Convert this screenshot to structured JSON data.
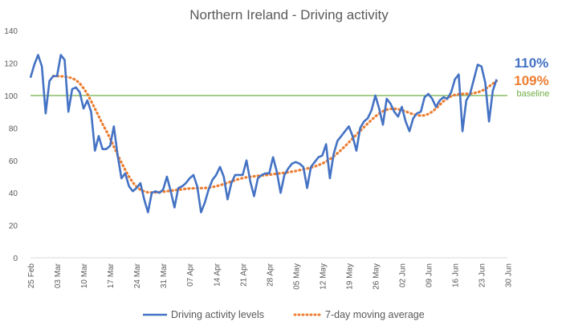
{
  "chart_data": {
    "type": "line",
    "title": "Northern Ireland - Driving activity",
    "xlabel": "",
    "ylabel": "",
    "ylim": [
      0,
      140
    ],
    "yticks": [
      0,
      20,
      40,
      60,
      80,
      100,
      120,
      140
    ],
    "x_start": "25 Feb",
    "x_ticks": [
      "25 Feb",
      "03 Mar",
      "10 Mar",
      "17 Mar",
      "24 Mar",
      "31 Mar",
      "07 Apr",
      "14 Apr",
      "21 Apr",
      "28 Apr",
      "05 May",
      "12 May",
      "19 May",
      "26 May",
      "02 Jun",
      "09 Jun",
      "16 Jun",
      "23 Jun",
      "30 Jun"
    ],
    "baseline": {
      "value": 100,
      "label": "baseline",
      "color": "#70ad47"
    },
    "end_labels": [
      {
        "text": "110%",
        "color": "#4472c4"
      },
      {
        "text": "109%",
        "color": "#ed7d31"
      }
    ],
    "grid": false,
    "legend": "bottom",
    "series": [
      {
        "name": "Driving activity levels",
        "color": "#4472c4",
        "style": "solid",
        "values": [
          111,
          119,
          125,
          118,
          89,
          109,
          112,
          112,
          125,
          122,
          90,
          104,
          105,
          102,
          92,
          97,
          90,
          66,
          75,
          67,
          67,
          69,
          81,
          63,
          49,
          52,
          44,
          41,
          43,
          46,
          36,
          28,
          40,
          41,
          40,
          42,
          50,
          41,
          31,
          43,
          44,
          46,
          49,
          51,
          44,
          28,
          34,
          42,
          48,
          51,
          56,
          50,
          36,
          46,
          51,
          51,
          51,
          60,
          47,
          38,
          49,
          51,
          52,
          52,
          62,
          53,
          40,
          51,
          55,
          58,
          59,
          58,
          56,
          43,
          56,
          59,
          62,
          63,
          70,
          49,
          64,
          72,
          75,
          78,
          81,
          75,
          66,
          80,
          84,
          86,
          91,
          100,
          92,
          82,
          98,
          95,
          90,
          87,
          93,
          84,
          78,
          86,
          89,
          90,
          99,
          101,
          98,
          93,
          97,
          99,
          98,
          102,
          110,
          113,
          78,
          97,
          101,
          110,
          119,
          118,
          108,
          84,
          103,
          110
        ]
      },
      {
        "name": "7-day moving average",
        "color": "#ed7d31",
        "style": "dotted",
        "values": [
          null,
          null,
          null,
          null,
          null,
          null,
          112,
          112,
          111.9,
          111.7,
          111.3,
          110.7,
          109.5,
          107.5,
          104.5,
          101,
          96.6,
          92,
          87.2,
          82.5,
          78.2,
          73.6,
          68.4,
          63.4,
          58.7,
          54.1,
          49.9,
          46.4,
          43.7,
          41.9,
          40.9,
          40.3,
          40.2,
          40.3,
          40.5,
          40.7,
          41,
          41.3,
          41.6,
          41.9,
          42.2,
          42.5,
          42.7,
          42.8,
          42.9,
          42.9,
          43,
          43.2,
          43.6,
          44.1,
          44.7,
          45.4,
          46.2,
          47,
          47.8,
          48.5,
          49.1,
          49.6,
          49.9,
          50.2,
          50.5,
          50.7,
          50.9,
          51.2,
          51.5,
          51.8,
          52.1,
          52.4,
          52.7,
          53.1,
          53.5,
          54,
          54.5,
          55,
          55.6,
          56.3,
          57.1,
          58.1,
          59.3,
          60.8,
          62.5,
          64.4,
          66.5,
          68.8,
          71.1,
          73.5,
          75.9,
          78.2,
          80.5,
          82.8,
          85,
          87.1,
          88.9,
          90.3,
          91.3,
          91.8,
          91.9,
          91.6,
          91,
          90.2,
          89.3,
          88.5,
          87.9,
          87.6,
          87.8,
          88.6,
          90,
          92,
          94.3,
          96.5,
          98.3,
          99.6,
          100.4,
          100.8,
          101,
          101.1,
          101.2,
          101.5,
          102,
          102.8,
          104,
          105.6,
          107.3,
          109
        ]
      }
    ]
  }
}
